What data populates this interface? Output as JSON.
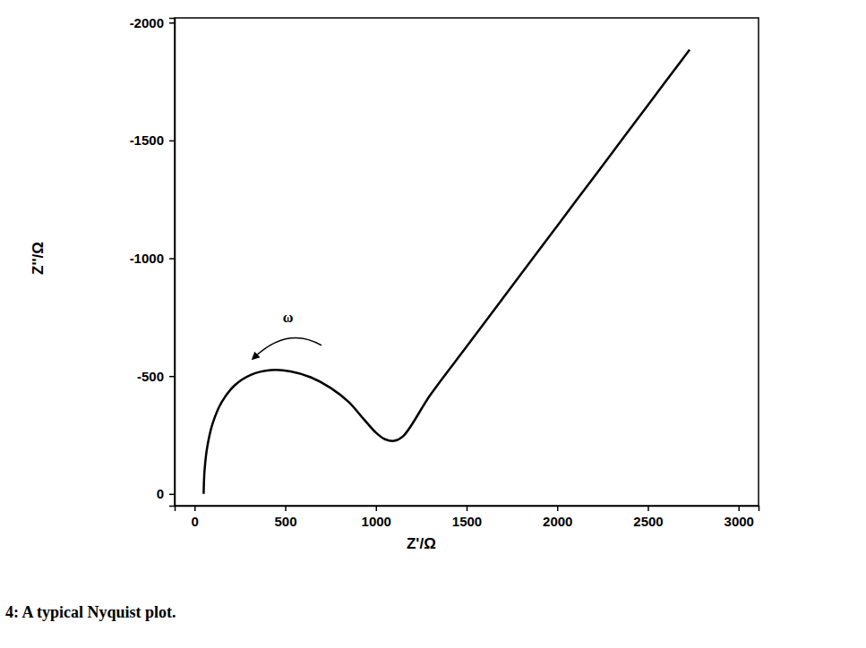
{
  "chart_data": {
    "type": "line",
    "title": "4: A typical Nyquist plot.",
    "x_label": "Z'/Ω",
    "y_label": "Z''/Ω",
    "annotations": [
      "ω"
    ],
    "x": [
      50,
      55,
      70,
      100,
      150,
      220,
      310,
      420,
      530,
      640,
      750,
      850,
      930,
      1000,
      1050,
      1100,
      1150,
      1300,
      1500,
      1700,
      1900,
      2100,
      2300,
      2500,
      2730
    ],
    "values": [
      0,
      -100,
      -200,
      -300,
      -390,
      -460,
      -505,
      -525,
      -520,
      -495,
      -450,
      -390,
      -320,
      -260,
      -232,
      -225,
      -245,
      -420,
      -625,
      -830,
      -1035,
      -1240,
      -1445,
      -1650,
      -1885
    ],
    "color": "#000000",
    "xlim": [
      -110,
      3110
    ],
    "xticks": [
      0,
      500,
      1000,
      1500,
      2000,
      2500,
      3000
    ],
    "ylim": [
      50,
      -2020
    ],
    "yticks": [
      -2000,
      -1500,
      -1000,
      -500,
      0
    ],
    "grid": false
  }
}
